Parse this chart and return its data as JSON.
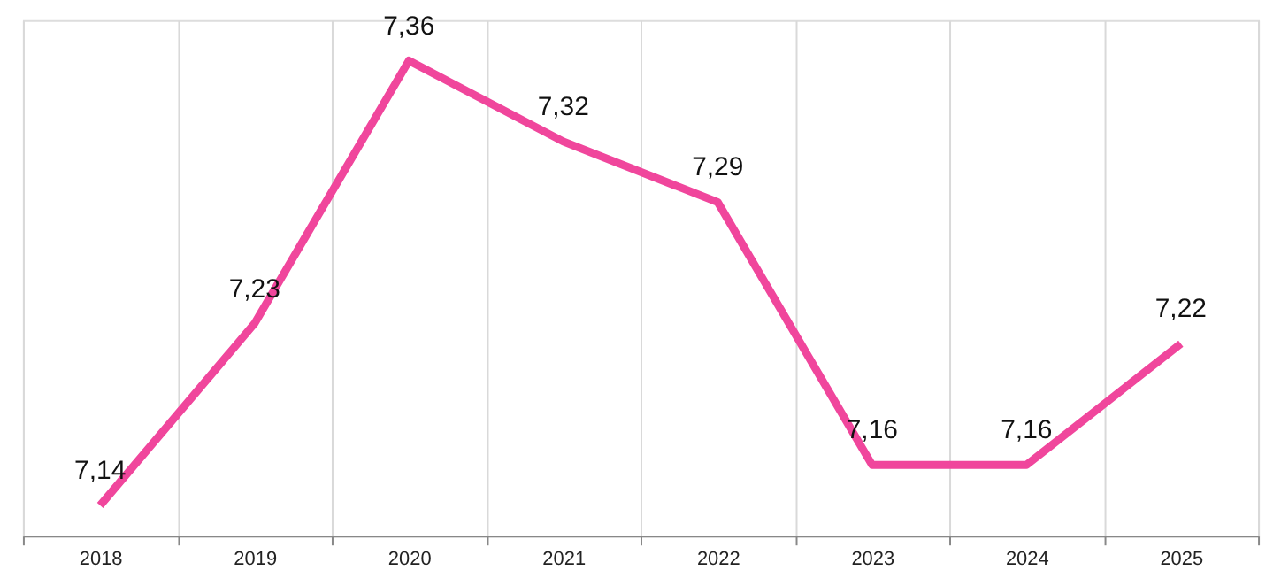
{
  "chart_data": {
    "type": "line",
    "categories": [
      "2018",
      "2019",
      "2020",
      "2021",
      "2022",
      "2023",
      "2024",
      "2025"
    ],
    "series": [
      {
        "color": "#f0469c",
        "values": [
          7.14,
          7.23,
          7.36,
          7.32,
          7.29,
          7.16,
          7.16,
          7.22
        ],
        "value_labels": [
          "7,14",
          "7,23",
          "7,36",
          "7,32",
          "7,29",
          "7,16",
          "7,16",
          "7,22"
        ]
      }
    ],
    "ylim": [
      7.125,
      7.38
    ],
    "tick_labels": "x",
    "grid": "x",
    "marker": "none",
    "line_style": "solid",
    "legend": false
  }
}
